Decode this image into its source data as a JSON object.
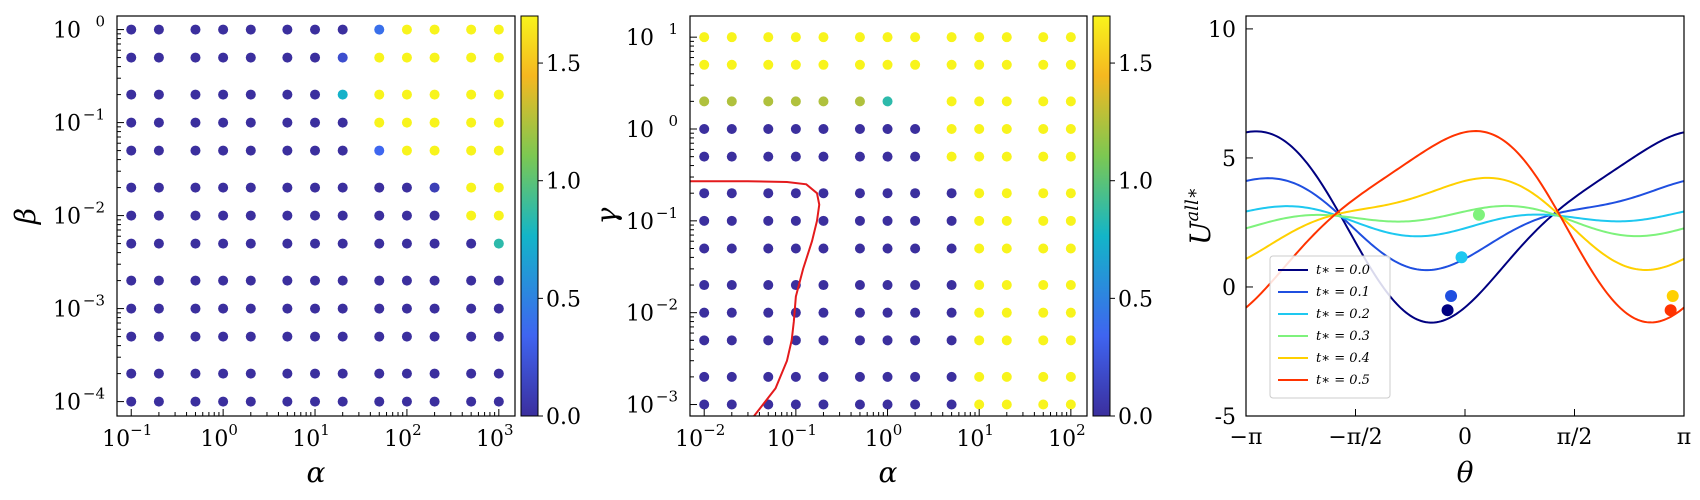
{
  "chart_data": [
    {
      "type": "scatter",
      "xlabel": "α",
      "ylabel": "β",
      "xscale": "log",
      "yscale": "log",
      "xlim": [
        0.07,
        1500
      ],
      "ylim": [
        7e-05,
        1.4
      ],
      "x_tick_labels": [
        "10",
        "10",
        "10",
        "10",
        "10"
      ],
      "x_tick_exponents": [
        "−1",
        "0",
        "1",
        "2",
        "3"
      ],
      "x_tick_values": [
        0.1,
        1,
        10,
        100,
        1000
      ],
      "y_tick_labels": [
        "10",
        "10",
        "10",
        "10",
        "10"
      ],
      "y_tick_exponents": [
        "−4",
        "−3",
        "−2",
        "−1",
        "0"
      ],
      "y_tick_values": [
        0.0001,
        0.001,
        0.01,
        0.1,
        1
      ],
      "colorbar": {
        "range": [
          0,
          1.7
        ],
        "tick_values": [
          0,
          0.5,
          1,
          1.5
        ],
        "tick_labels": [
          "0.0",
          "0.5",
          "1.0",
          "1.5"
        ]
      },
      "alpha_grid": [
        0.1,
        0.2,
        0.5,
        1,
        2,
        5,
        10,
        20,
        50,
        100,
        200,
        500,
        1000
      ],
      "beta_grid": [
        1,
        0.5,
        0.2,
        0.1,
        0.05,
        0.02,
        0.01,
        0.005,
        0.002,
        0.001,
        0.0005,
        0.0002,
        0.0001
      ],
      "values": [
        [
          0,
          0,
          0,
          0,
          0,
          0,
          0,
          0,
          0.4,
          1.7,
          1.7,
          1.7,
          1.7
        ],
        [
          0,
          0,
          0,
          0,
          0,
          0,
          0,
          0.2,
          1.7,
          1.7,
          1.7,
          1.7,
          1.7
        ],
        [
          0,
          0,
          0,
          0,
          0,
          0,
          0,
          0.75,
          1.7,
          1.7,
          1.7,
          1.7,
          1.7
        ],
        [
          0,
          0,
          0,
          0,
          0,
          0,
          0,
          0,
          1.7,
          1.7,
          1.7,
          1.7,
          1.7
        ],
        [
          0,
          0,
          0,
          0,
          0,
          0,
          0,
          0,
          0.35,
          1.7,
          1.7,
          1.7,
          1.7
        ],
        [
          0,
          0,
          0,
          0,
          0,
          0,
          0,
          0,
          0,
          0,
          0.1,
          1.7,
          1.7
        ],
        [
          0,
          0,
          0,
          0,
          0,
          0,
          0,
          0,
          0,
          0,
          0,
          1.7,
          1.7
        ],
        [
          0,
          0,
          0,
          0,
          0,
          0,
          0,
          0,
          0,
          0,
          0,
          0,
          0.85
        ],
        [
          0,
          0,
          0,
          0,
          0,
          0,
          0,
          0,
          0,
          0,
          0,
          0,
          0
        ],
        [
          0,
          0,
          0,
          0,
          0,
          0,
          0,
          0,
          0,
          0,
          0,
          0,
          0
        ],
        [
          0,
          0,
          0,
          0,
          0,
          0,
          0,
          0,
          0,
          0,
          0,
          0,
          0
        ],
        [
          0,
          0,
          0,
          0,
          0,
          0,
          0,
          0,
          0,
          0,
          0,
          0,
          0
        ],
        [
          0,
          0,
          0,
          0,
          0,
          0,
          0,
          0,
          0,
          0,
          0,
          0,
          0
        ]
      ]
    },
    {
      "type": "scatter",
      "xlabel": "α",
      "ylabel": "γ",
      "xscale": "log",
      "yscale": "log",
      "xlim": [
        0.007,
        150
      ],
      "ylim": [
        0.00075,
        17
      ],
      "x_tick_labels": [
        "10",
        "10",
        "10",
        "10",
        "10"
      ],
      "x_tick_exponents": [
        "−2",
        "−1",
        "0",
        "1",
        "2"
      ],
      "x_tick_values": [
        0.01,
        0.1,
        1,
        10,
        100
      ],
      "y_tick_labels": [
        "10",
        "10",
        "10",
        "10",
        "10"
      ],
      "y_tick_exponents": [
        "−3",
        "−2",
        "−1",
        "0",
        "1"
      ],
      "y_tick_values": [
        0.001,
        0.01,
        0.1,
        1,
        10
      ],
      "colorbar": {
        "range": [
          0,
          1.7
        ],
        "tick_values": [
          0,
          0.5,
          1,
          1.5
        ],
        "tick_labels": [
          "0.0",
          "0.5",
          "1.0",
          "1.5"
        ]
      },
      "alpha_grid": [
        0.01,
        0.02,
        0.05,
        0.1,
        0.2,
        0.5,
        1,
        2,
        5,
        10,
        20,
        50,
        100
      ],
      "gamma_grid": [
        10,
        5,
        2,
        1,
        0.5,
        0.2,
        0.1,
        0.05,
        0.02,
        0.01,
        0.005,
        0.002,
        0.001
      ],
      "values": [
        [
          1.7,
          1.7,
          1.7,
          1.7,
          1.7,
          1.7,
          1.7,
          1.7,
          1.7,
          1.7,
          1.7,
          1.7,
          1.7
        ],
        [
          1.7,
          1.7,
          1.7,
          1.7,
          1.7,
          1.7,
          1.7,
          1.7,
          1.7,
          1.7,
          1.7,
          1.7,
          1.7
        ],
        [
          1.25,
          1.25,
          1.25,
          1.25,
          1.25,
          1.25,
          0.85,
          null,
          1.7,
          1.7,
          1.7,
          1.7,
          1.7
        ],
        [
          0,
          0,
          0,
          0,
          0,
          0,
          0,
          0,
          1.7,
          1.7,
          1.7,
          1.7,
          1.7
        ],
        [
          0,
          0,
          0,
          0,
          0,
          0,
          0,
          0,
          1.7,
          1.7,
          1.7,
          1.7,
          1.7
        ],
        [
          0,
          0,
          0,
          0,
          0,
          0,
          0,
          0,
          0,
          1.7,
          1.7,
          1.7,
          1.7
        ],
        [
          0,
          0,
          0,
          0,
          0,
          0,
          0,
          0,
          0,
          1.7,
          1.7,
          1.7,
          1.7
        ],
        [
          0,
          0,
          0,
          0,
          0,
          0,
          0,
          0,
          0,
          1.7,
          1.7,
          1.7,
          1.7
        ],
        [
          0,
          0,
          0,
          0,
          0,
          0,
          0,
          0,
          0,
          1.7,
          1.7,
          1.7,
          1.7
        ],
        [
          0,
          0,
          0,
          0,
          0,
          0,
          0,
          0,
          0,
          1.7,
          1.7,
          1.7,
          1.7
        ],
        [
          0,
          0,
          0,
          0,
          0,
          0,
          0,
          0,
          0,
          1.7,
          1.7,
          1.7,
          1.7
        ],
        [
          0,
          0,
          0,
          0,
          0,
          0,
          0,
          0,
          0,
          1.7,
          1.7,
          1.7,
          1.7
        ],
        [
          0,
          0,
          0,
          0,
          0,
          0,
          0,
          0,
          0,
          1.7,
          1.7,
          1.7,
          1.7
        ]
      ],
      "boundary_curve": {
        "color": "#e41a1c",
        "points": [
          [
            0.007,
            0.27
          ],
          [
            0.03,
            0.27
          ],
          [
            0.08,
            0.265
          ],
          [
            0.13,
            0.25
          ],
          [
            0.17,
            0.2
          ],
          [
            0.18,
            0.15
          ],
          [
            0.17,
            0.1
          ],
          [
            0.15,
            0.06
          ],
          [
            0.12,
            0.03
          ],
          [
            0.1,
            0.015
          ],
          [
            0.095,
            0.008
          ],
          [
            0.09,
            0.005
          ],
          [
            0.08,
            0.003
          ],
          [
            0.06,
            0.0015
          ],
          [
            0.035,
            0.00075
          ]
        ]
      }
    },
    {
      "type": "line",
      "xlabel": "θ",
      "ylabel": "U",
      "ylabel_superscript": "all∗",
      "xlim": [
        -3.14159,
        3.14159
      ],
      "ylim": [
        -5,
        10.5
      ],
      "x_tick_values": [
        -3.14159,
        -1.5708,
        0,
        1.5708,
        3.14159
      ],
      "x_tick_labels": [
        "−π",
        "−π/2",
        "0",
        "π/2",
        "π"
      ],
      "y_tick_values": [
        -5,
        0,
        5,
        10
      ],
      "y_tick_labels": [
        "-5",
        "0",
        "5",
        "10"
      ],
      "legend_position": "lower-left",
      "series": [
        {
          "name": "t∗ = 0.0",
          "label_t": "t",
          "label_rest": "∗ = 0.0",
          "color": "#000080",
          "amplitude": 3.5,
          "phase": 0.0,
          "markers": [
            [
              -0.25,
              -0.9
            ]
          ]
        },
        {
          "name": "t∗ = 0.1",
          "label_t": "t",
          "label_rest": "∗ = 0.1",
          "color": "#1f4fe0",
          "amplitude": 3.0,
          "phase": 0.1,
          "markers": [
            [
              -0.2,
              -0.35
            ]
          ]
        },
        {
          "name": "t∗ = 0.2",
          "label_t": "t",
          "label_rest": "∗ = 0.2",
          "color": "#1ec8f0",
          "amplitude": 1.9,
          "phase": 0.2,
          "markers": [
            [
              -0.05,
              1.15
            ]
          ]
        },
        {
          "name": "t∗ = 0.3",
          "label_t": "t",
          "label_rest": "∗ = 0.3",
          "color": "#7ef27c",
          "amplitude": 1.1,
          "phase": 0.3,
          "markers": [
            [
              0.2,
              2.8
            ]
          ]
        },
        {
          "name": "t∗ = 0.4",
          "label_t": "t",
          "label_rest": "∗ = 0.4",
          "color": "#ffd000",
          "amplitude": 3.0,
          "phase": 0.4,
          "markers": [
            [
              2.98,
              -0.35
            ]
          ]
        },
        {
          "name": "t∗ = 0.5",
          "label_t": "t",
          "label_rest": "∗ = 0.5",
          "color": "#ff3300",
          "amplitude": 3.5,
          "phase": 0.5,
          "markers": [
            [
              2.95,
              -0.9
            ]
          ]
        }
      ]
    }
  ]
}
